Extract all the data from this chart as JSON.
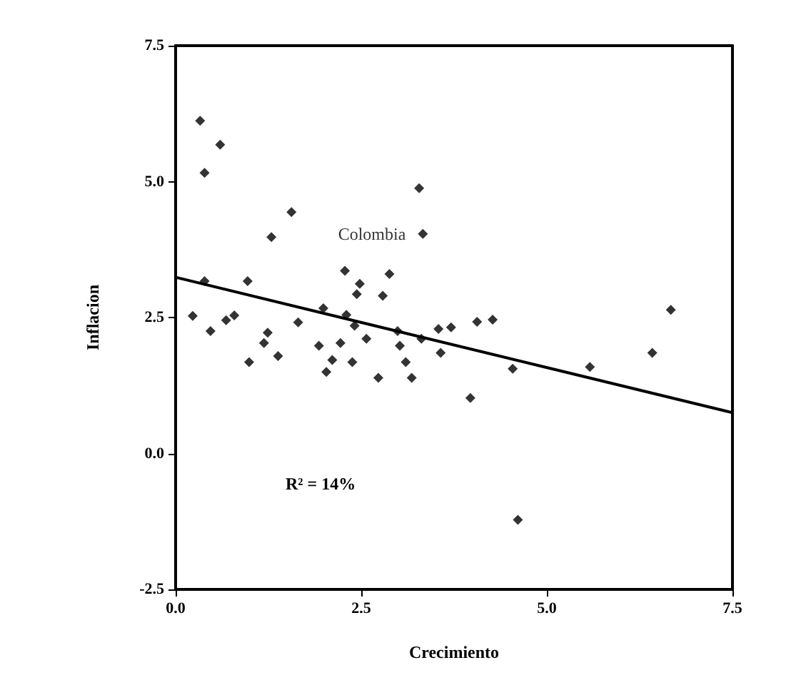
{
  "chart_data": {
    "type": "scatter",
    "xlabel": "Crecimiento",
    "ylabel": "Inflacion",
    "xlim": [
      0,
      7.5
    ],
    "ylim": [
      -2.5,
      7.5
    ],
    "xticks": [
      {
        "value": 0,
        "label": "0.0"
      },
      {
        "value": 2.5,
        "label": "2.5"
      },
      {
        "value": 5,
        "label": "5.0"
      },
      {
        "value": 7.5,
        "label": "7.5"
      }
    ],
    "yticks": [
      {
        "value": -2.5,
        "label": "-2.5"
      },
      {
        "value": 0,
        "label": "0.0"
      },
      {
        "value": 2.5,
        "label": "2.5"
      },
      {
        "value": 5,
        "label": "5.0"
      },
      {
        "value": 7.5,
        "label": "7.5"
      }
    ],
    "grid": false,
    "marker": "diamond",
    "annotations": [
      {
        "text": "Colombia",
        "x": 3.33,
        "y": 4.04
      },
      "R² = 14%"
    ],
    "series": [
      {
        "color": "#000000",
        "x": [
          0.33,
          0.6,
          0.39,
          3.28,
          1.56,
          1.29,
          3.33,
          0.39,
          0.97,
          2.28,
          2.88,
          2.48,
          2.44,
          2.79,
          1.99,
          2.3,
          0.23,
          0.68,
          0.79,
          0.47,
          1.24,
          1.65,
          2.41,
          2.99,
          3.31,
          3.54,
          3.71,
          4.06,
          1.19,
          1.38,
          1.93,
          2.22,
          2.57,
          3.02,
          3.57,
          0.99,
          2.11,
          2.38,
          2.03,
          2.73,
          3.1,
          3.18,
          3.97,
          4.27,
          6.67,
          6.42,
          5.58,
          4.54,
          4.61
        ],
        "values": [
          6.12,
          5.68,
          5.16,
          4.88,
          4.44,
          3.98,
          4.04,
          3.17,
          3.17,
          3.36,
          3.3,
          3.12,
          2.93,
          2.9,
          2.67,
          2.55,
          2.53,
          2.45,
          2.54,
          2.25,
          2.22,
          2.41,
          2.35,
          2.25,
          2.11,
          2.29,
          2.32,
          2.42,
          2.03,
          1.79,
          1.98,
          2.03,
          2.11,
          1.98,
          1.85,
          1.68,
          1.72,
          1.68,
          1.5,
          1.39,
          1.68,
          1.39,
          1.02,
          2.46,
          2.64,
          1.85,
          1.59,
          1.56,
          -1.22
        ]
      },
      {
        "type": "line",
        "color": "#000000",
        "marker": "none",
        "line_style": "solid",
        "x": [
          0,
          7.5
        ],
        "values": [
          3.24,
          0.75
        ]
      }
    ]
  }
}
